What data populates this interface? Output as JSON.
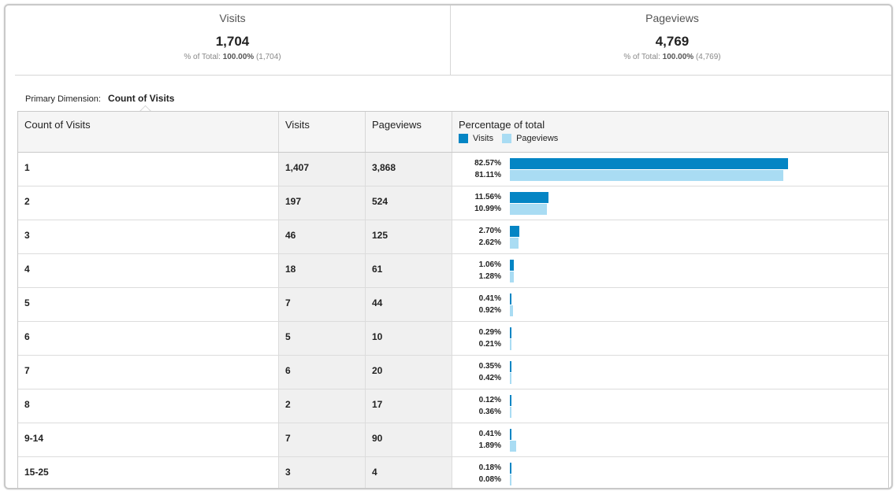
{
  "summary": {
    "visits": {
      "label": "Visits",
      "value": "1,704",
      "pct_prefix": "% of Total:",
      "pct_value": "100.00%",
      "pct_total": "(1,704)"
    },
    "pageviews": {
      "label": "Pageviews",
      "value": "4,769",
      "pct_prefix": "% of Total:",
      "pct_value": "100.00%",
      "pct_total": "(4,769)"
    }
  },
  "primary_dimension": {
    "label": "Primary Dimension:",
    "value": "Count of Visits"
  },
  "table": {
    "headers": {
      "dimension": "Count of Visits",
      "visits": "Visits",
      "pageviews": "Pageviews",
      "percentage": "Percentage of total"
    },
    "legend": {
      "visits": "Visits",
      "pageviews": "Pageviews"
    },
    "colors": {
      "visits": "#0485c4",
      "pageviews": "#a9dcf3"
    },
    "rows": [
      {
        "dim": "1",
        "visits": "1,407",
        "pageviews": "3,868",
        "visits_pct": "82.57%",
        "pageviews_pct": "81.11%"
      },
      {
        "dim": "2",
        "visits": "197",
        "pageviews": "524",
        "visits_pct": "11.56%",
        "pageviews_pct": "10.99%"
      },
      {
        "dim": "3",
        "visits": "46",
        "pageviews": "125",
        "visits_pct": "2.70%",
        "pageviews_pct": "2.62%"
      },
      {
        "dim": "4",
        "visits": "18",
        "pageviews": "61",
        "visits_pct": "1.06%",
        "pageviews_pct": "1.28%"
      },
      {
        "dim": "5",
        "visits": "7",
        "pageviews": "44",
        "visits_pct": "0.41%",
        "pageviews_pct": "0.92%"
      },
      {
        "dim": "6",
        "visits": "5",
        "pageviews": "10",
        "visits_pct": "0.29%",
        "pageviews_pct": "0.21%"
      },
      {
        "dim": "7",
        "visits": "6",
        "pageviews": "20",
        "visits_pct": "0.35%",
        "pageviews_pct": "0.42%"
      },
      {
        "dim": "8",
        "visits": "2",
        "pageviews": "17",
        "visits_pct": "0.12%",
        "pageviews_pct": "0.36%"
      },
      {
        "dim": "9-14",
        "visits": "7",
        "pageviews": "90",
        "visits_pct": "0.41%",
        "pageviews_pct": "1.89%"
      },
      {
        "dim": "15-25",
        "visits": "3",
        "pageviews": "4",
        "visits_pct": "0.18%",
        "pageviews_pct": "0.08%"
      }
    ]
  }
}
